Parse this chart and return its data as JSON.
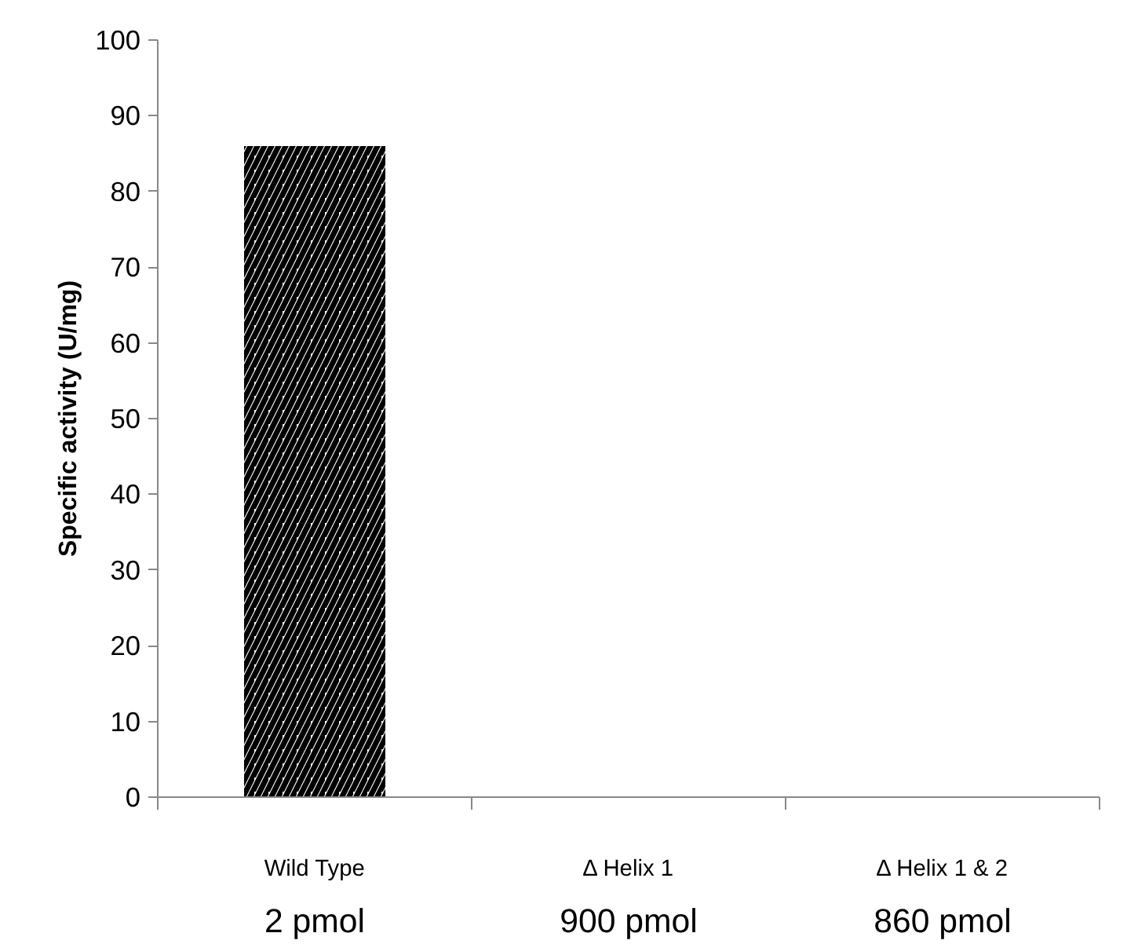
{
  "chart_data": {
    "type": "bar",
    "ylabel": "Specific activity (U/mg)",
    "categories": [
      "Wild Type",
      "Δ Helix 1",
      "Δ Helix 1 & 2"
    ],
    "values": [
      86,
      0,
      0
    ],
    "color": "#000000",
    "ylim": [
      0,
      100
    ],
    "yticks": [
      0,
      10,
      20,
      30,
      40,
      50,
      60,
      70,
      80,
      90,
      100
    ],
    "grid": false,
    "annotations": [
      "2 pmol",
      "900 pmol",
      "860 pmol"
    ]
  }
}
